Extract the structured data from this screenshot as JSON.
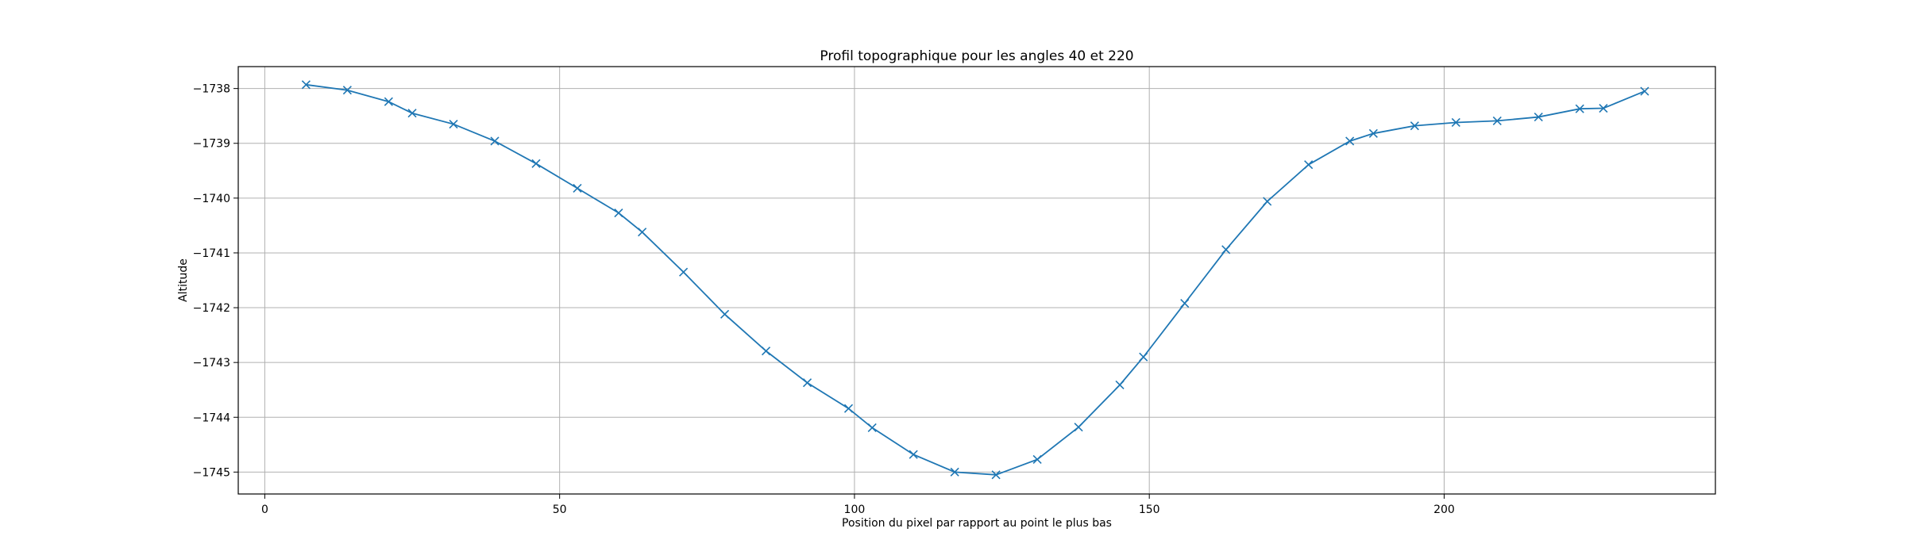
{
  "chart_data": {
    "type": "line",
    "title": "Profil topographique pour les angles 40 et 220",
    "xlabel": "Position du pixel par rapport au point le plus bas",
    "ylabel": "Altitude",
    "xlim": [
      -4.5,
      246
    ],
    "ylim": [
      -745.4,
      -737.6
    ],
    "xticks": [
      0,
      50,
      100,
      150,
      200
    ],
    "xtick_labels": [
      "0",
      "50",
      "100",
      "150",
      "200"
    ],
    "yticks": [
      -738,
      -739,
      -740,
      -741,
      -742,
      -743,
      -744,
      -745
    ],
    "ytick_labels": [
      "−1738",
      "−1739",
      "−1740",
      "−1741",
      "−1742",
      "−1743",
      "−1744",
      "−1745"
    ],
    "y_tick_label_prefix": "−1",
    "grid": true,
    "marker": "x",
    "color": "#1f77b4",
    "series": [
      {
        "x": [
          7,
          14,
          21,
          25,
          32,
          39,
          46,
          53,
          60,
          64,
          71,
          78,
          85,
          92,
          99,
          103,
          110,
          117,
          124,
          131,
          138,
          145,
          149,
          156,
          163,
          170,
          177,
          184,
          188,
          195,
          202,
          209,
          216,
          223,
          227,
          234
        ],
        "y": [
          -737.93,
          -738.03,
          -738.24,
          -738.45,
          -738.65,
          -738.96,
          -739.37,
          -739.82,
          -740.27,
          -740.62,
          -741.35,
          -742.12,
          -742.79,
          -743.37,
          -743.84,
          -744.19,
          -744.68,
          -745.0,
          -745.05,
          -744.77,
          -744.18,
          -743.41,
          -742.9,
          -741.92,
          -740.94,
          -740.06,
          -739.39,
          -738.96,
          -738.82,
          -738.68,
          -738.62,
          -738.59,
          -738.52,
          -738.37,
          -738.36,
          -738.05
        ]
      }
    ]
  }
}
